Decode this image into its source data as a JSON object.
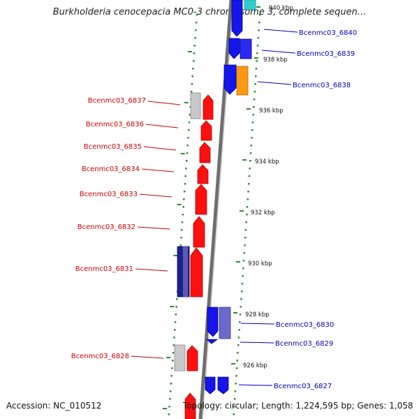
{
  "title": "Burkholderia cenocepacia MC0-3 chromosome 3, complete sequen...",
  "footer": {
    "accession": "Accession: NC_010512",
    "topology": "Topology: circular; Length: 1,224,595 bp; Genes: 1,058"
  },
  "colors": {
    "forward_label": "#cc0000",
    "reverse_label": "#0000bb",
    "tick_green": "#2e8b2e",
    "backbone": "#888888"
  },
  "scale_labels": [
    "940 kbp",
    "938 kbp",
    "936 kbp",
    "934 kbp",
    "932 kbp",
    "930 kbp",
    "928 kbp",
    "926 kbp"
  ],
  "genes_left": [
    {
      "label": "Bcenmc03_6837",
      "color": "#cc0000"
    },
    {
      "label": "Bcenmc03_6836",
      "color": "#cc0000"
    },
    {
      "label": "Bcenmc03_6835",
      "color": "#cc0000"
    },
    {
      "label": "Bcenmc03_6834",
      "color": "#cc0000"
    },
    {
      "label": "Bcenmc03_6833",
      "color": "#cc0000"
    },
    {
      "label": "Bcenmc03_6832",
      "color": "#cc0000"
    },
    {
      "label": "Bcenmc03_6831",
      "color": "#cc0000"
    },
    {
      "label": "Bcenmc03_6828",
      "color": "#cc0000"
    }
  ],
  "genes_right": [
    {
      "label": "Bcenmc03_6840",
      "color": "#0000bb"
    },
    {
      "label": "Bcenmc03_6839",
      "color": "#0000bb"
    },
    {
      "label": "Bcenmc03_6838",
      "color": "#0000bb"
    },
    {
      "label": "Bcenmc03_6830",
      "color": "#0000bb"
    },
    {
      "label": "Bcenmc03_6829",
      "color": "#0000bb"
    },
    {
      "label": "Bcenmc03_6827",
      "color": "#0000bb"
    }
  ]
}
